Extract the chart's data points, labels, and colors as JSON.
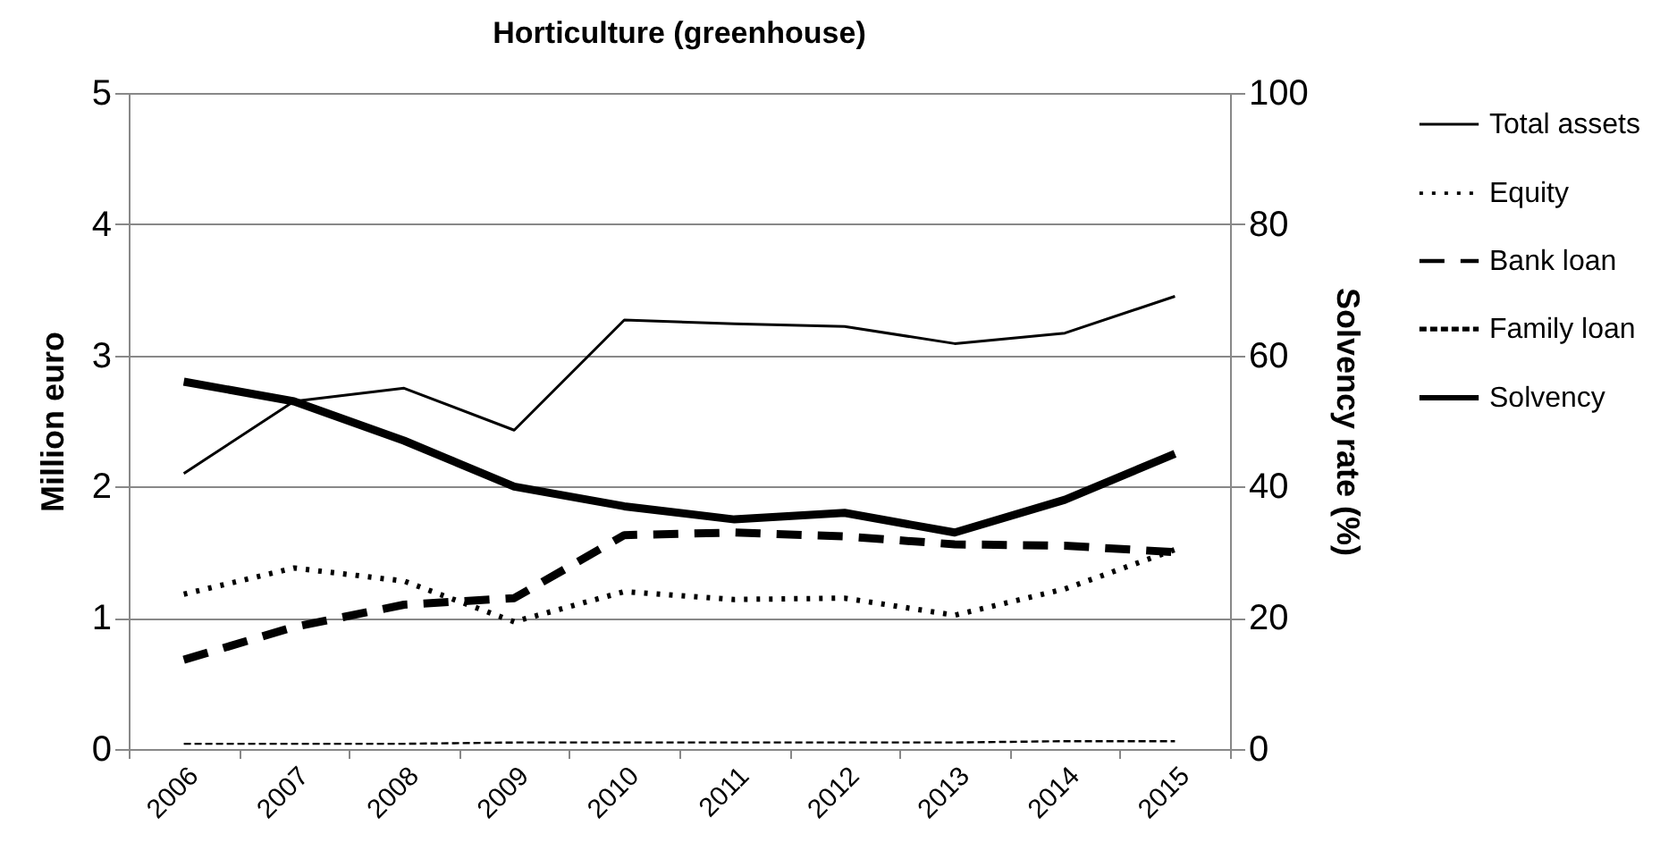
{
  "chart_data": {
    "type": "line",
    "title": "Horticulture (greenhouse)",
    "ylabel": "Million euro",
    "y2label": "Solvency rate (%)",
    "categories": [
      "2006",
      "2007",
      "2008",
      "2009",
      "2010",
      "2011",
      "2012",
      "2013",
      "2014",
      "2015"
    ],
    "ylim": [
      0,
      5
    ],
    "yticks": [
      0,
      1,
      2,
      3,
      4,
      5
    ],
    "y2lim": [
      0,
      100
    ],
    "y2ticks": [
      0,
      20,
      40,
      60,
      80,
      100
    ],
    "grid": "y",
    "legend": "right",
    "marker": "none",
    "series": [
      {
        "name": "Total assets",
        "color": "#000000",
        "line_style": "solid",
        "values": [
          2.1,
          2.65,
          2.75,
          2.43,
          3.27,
          3.24,
          3.22,
          3.09,
          3.17,
          3.45
        ]
      },
      {
        "name": "Equity",
        "color": "#000000",
        "line_style": "dotted",
        "values": [
          1.18,
          1.38,
          1.28,
          0.97,
          1.2,
          1.14,
          1.15,
          1.02,
          1.22,
          1.52
        ]
      },
      {
        "name": "Bank loan",
        "color": "#000000",
        "line_style": "dashed",
        "values": [
          0.68,
          0.93,
          1.1,
          1.15,
          1.63,
          1.65,
          1.62,
          1.56,
          1.55,
          1.5
        ]
      },
      {
        "name": "Family loan",
        "color": "#000000",
        "line_style": "dashed",
        "values": [
          0.04,
          0.04,
          0.04,
          0.05,
          0.05,
          0.05,
          0.05,
          0.05,
          0.06,
          0.06
        ]
      },
      {
        "name": "Solvency",
        "color": "#000000",
        "line_style": "solid",
        "axis": "y2",
        "values": [
          56,
          53,
          47,
          40,
          37,
          35,
          36,
          33,
          38,
          45
        ]
      }
    ]
  }
}
